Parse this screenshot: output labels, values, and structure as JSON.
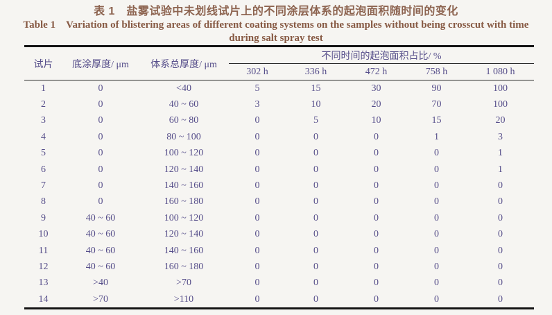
{
  "title": {
    "zh": "表 1　盐雾试验中未划线试片上的不同涂层体系的起泡面积随时间的变化",
    "en_line1": "Table 1　Variation of blistering areas of different coating systems on the samples without being crosscut with time",
    "en_line2": "during salt spray test"
  },
  "table": {
    "headers": {
      "sample": "试片",
      "primer": "底涂厚度/ μm",
      "total": "体系总厚度/ μm",
      "spanner": "不同时间的起泡面积占比/ %",
      "times": [
        "302 h",
        "336 h",
        "472 h",
        "758 h",
        "1 080 h"
      ]
    },
    "rows": [
      [
        "1",
        "0",
        "<40",
        "5",
        "15",
        "30",
        "90",
        "100"
      ],
      [
        "2",
        "0",
        "40 ~ 60",
        "3",
        "10",
        "20",
        "70",
        "100"
      ],
      [
        "3",
        "0",
        "60 ~ 80",
        "0",
        "5",
        "10",
        "15",
        "20"
      ],
      [
        "4",
        "0",
        "80 ~ 100",
        "0",
        "0",
        "0",
        "1",
        "3"
      ],
      [
        "5",
        "0",
        "100 ~ 120",
        "0",
        "0",
        "0",
        "0",
        "1"
      ],
      [
        "6",
        "0",
        "120 ~ 140",
        "0",
        "0",
        "0",
        "0",
        "1"
      ],
      [
        "7",
        "0",
        "140 ~ 160",
        "0",
        "0",
        "0",
        "0",
        "0"
      ],
      [
        "8",
        "0",
        "160 ~ 180",
        "0",
        "0",
        "0",
        "0",
        "0"
      ],
      [
        "9",
        "40 ~ 60",
        "100 ~ 120",
        "0",
        "0",
        "0",
        "0",
        "0"
      ],
      [
        "10",
        "40 ~ 60",
        "120 ~ 140",
        "0",
        "0",
        "0",
        "0",
        "0"
      ],
      [
        "11",
        "40 ~ 60",
        "140 ~ 160",
        "0",
        "0",
        "0",
        "0",
        "0"
      ],
      [
        "12",
        "40 ~ 60",
        "160 ~ 180",
        "0",
        "0",
        "0",
        "0",
        "0"
      ],
      [
        "13",
        ">40",
        ">70",
        "0",
        "0",
        "0",
        "0",
        "0"
      ],
      [
        "14",
        ">70",
        ">110",
        "0",
        "0",
        "0",
        "0",
        "0"
      ]
    ]
  },
  "chart_data": {
    "type": "table",
    "title": "表 1 盐雾试验中未划线试片上的不同涂层体系的起泡面积随时间的变化 / Table 1 Variation of blistering areas of different coating systems on the samples without being crosscut with time during salt spray test",
    "columns": [
      "试片",
      "底涂厚度/μm",
      "体系总厚度/μm",
      "302 h",
      "336 h",
      "472 h",
      "758 h",
      "1 080 h"
    ],
    "column_group": {
      "label": "不同时间的起泡面积占比/%",
      "spans": [
        "302 h",
        "336 h",
        "472 h",
        "758 h",
        "1 080 h"
      ]
    },
    "rows": [
      [
        "1",
        "0",
        "<40",
        5,
        15,
        30,
        90,
        100
      ],
      [
        "2",
        "0",
        "40~60",
        3,
        10,
        20,
        70,
        100
      ],
      [
        "3",
        "0",
        "60~80",
        0,
        5,
        10,
        15,
        20
      ],
      [
        "4",
        "0",
        "80~100",
        0,
        0,
        0,
        1,
        3
      ],
      [
        "5",
        "0",
        "100~120",
        0,
        0,
        0,
        0,
        1
      ],
      [
        "6",
        "0",
        "120~140",
        0,
        0,
        0,
        0,
        1
      ],
      [
        "7",
        "0",
        "140~160",
        0,
        0,
        0,
        0,
        0
      ],
      [
        "8",
        "0",
        "160~180",
        0,
        0,
        0,
        0,
        0
      ],
      [
        "9",
        "40~60",
        "100~120",
        0,
        0,
        0,
        0,
        0
      ],
      [
        "10",
        "40~60",
        "120~140",
        0,
        0,
        0,
        0,
        0
      ],
      [
        "11",
        "40~60",
        "140~160",
        0,
        0,
        0,
        0,
        0
      ],
      [
        "12",
        "40~60",
        "160~180",
        0,
        0,
        0,
        0,
        0
      ],
      [
        "13",
        ">40",
        ">70",
        0,
        0,
        0,
        0,
        0
      ],
      [
        "14",
        ">70",
        ">110",
        0,
        0,
        0,
        0,
        0
      ]
    ]
  },
  "colors": {
    "title_text": "#8d6450",
    "table_text": "#564e8a",
    "rule": "#141414",
    "background": "#f6f5f2"
  }
}
